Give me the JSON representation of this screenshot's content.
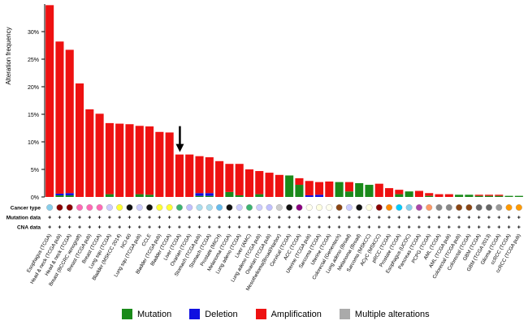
{
  "chart_data": {
    "type": "bar",
    "ylabel": "Alteration frequency",
    "ylim": [
      0,
      35
    ],
    "yticks": [
      0,
      5,
      10,
      15,
      20,
      25,
      30
    ],
    "ytick_labels": [
      "0%",
      "5%",
      "10%",
      "15%",
      "20%",
      "25%",
      "30%"
    ],
    "row_labels": {
      "cancer_type": "Cancer type",
      "mutation_data": "Mutation data",
      "cna_data": "CNA data"
    },
    "categories": [
      "Esophagus (TCGA)",
      "Head & neck (TCGA pub)",
      "Head & neck (TCGA)",
      "Breast (BCCRC xenograft)",
      "Breast (TCGA pub)",
      "Breast (TCGA)",
      "Lung squ (TCGA)",
      "Bladder (MSKCC 2014)",
      "NCI-60",
      "Lung squ (TCGA pub)",
      "CCLE",
      "Bladder (TCGA pub)",
      "Bladder (TCGA)",
      "Liver (TCGA)",
      "Ovarian (TCGA)",
      "Stomach (TCGA pub)",
      "Stomach (TCGA)",
      "Prostate (MICH)",
      "Melanoma (TCGA)",
      "Lung adeno (TCGA)",
      "Liver (AMC)",
      "Lung adeno (TCGA pub)",
      "Ovarian (TCGA pub)",
      "Mesothelioma(Broad/Harbor)",
      "Cervical (TCGA)",
      "ACC (TCGA)",
      "Uterine (TCGA pub)",
      "Sarcoma (TCGA)",
      "Uterine (TCGA)",
      "Colorectal (Genentech)",
      "Lung adeno (Broad)",
      "Melanoma (Broad)",
      "Sarcoma (MSKCC)",
      "ACyC (MSKCC)",
      "pRCC (TCGA)",
      "Prostate (TCGA)",
      "Esophagus (UCOC)",
      "Pancreas (TCGA)",
      "PCPG (TCGA)",
      "AML (TCGA)",
      "AML (TCGA pub)",
      "Colorectal (TCGA pub)",
      "Colorectal (TCGA)",
      "GBM (TCGA)",
      "GBM (TCGA 2013)",
      "Glioma (TCGA)",
      "ccRCC (TCGA)",
      "ccRCC (TCGA pub)"
    ],
    "series": [
      {
        "name": "Mutation",
        "color": "#1a8a1a",
        "values": [
          0,
          0.3,
          0.3,
          0,
          0,
          0,
          0.5,
          0,
          0,
          0.5,
          0.4,
          0,
          0,
          0,
          0,
          0.2,
          0.2,
          0,
          0.9,
          0.3,
          0,
          0.5,
          0,
          0,
          3.9,
          2.2,
          0,
          0,
          0,
          2.7,
          1.0,
          2.5,
          2.2,
          0,
          0,
          0.5,
          1.0,
          0,
          0.2,
          0,
          0,
          0.4,
          0.4,
          0.2,
          0.2,
          0.2,
          0.2,
          0.2
        ]
      },
      {
        "name": "Deletion",
        "color": "#1010e0",
        "values": [
          0,
          0.3,
          0.4,
          0,
          0,
          0,
          0,
          0,
          0,
          0,
          0,
          0,
          0,
          0,
          0,
          0.5,
          0.5,
          0,
          0,
          0,
          0,
          0,
          0,
          0,
          0,
          0,
          0.3,
          0.4,
          0,
          0,
          0,
          0,
          0,
          0,
          0,
          0,
          0,
          0,
          0,
          0,
          0,
          0,
          0,
          0,
          0,
          0,
          0,
          0
        ]
      },
      {
        "name": "Amplification",
        "color": "#ee1111",
        "values": [
          34.8,
          27.6,
          26.0,
          20.6,
          15.9,
          15.1,
          12.9,
          13.3,
          13.2,
          12.4,
          12.4,
          11.8,
          11.7,
          7.7,
          7.7,
          6.7,
          6.5,
          6.5,
          5.1,
          5.7,
          5.0,
          4.2,
          4.4,
          4.0,
          0,
          1.2,
          2.6,
          2.3,
          2.8,
          0,
          1.7,
          0,
          0,
          2.4,
          1.6,
          0.8,
          0,
          1.1,
          0.5,
          0.5,
          0.5,
          0,
          0,
          0.2,
          0.2,
          0.2,
          0,
          0
        ]
      },
      {
        "name": "Multiple alterations",
        "color": "#aaaaaa",
        "values": [
          0,
          0,
          0,
          0,
          0,
          0,
          0,
          0,
          0,
          0,
          0,
          0,
          0,
          0,
          0,
          0,
          0,
          0,
          0,
          0,
          0,
          0,
          0,
          0,
          0,
          0,
          0,
          0,
          0,
          0,
          0,
          0,
          0,
          0,
          0,
          0,
          0,
          0,
          0,
          0,
          0,
          0,
          0,
          0,
          0,
          0,
          0,
          0
        ]
      }
    ],
    "cancer_type_colors": [
      "#87ceeb",
      "#8b0000",
      "#8b0000",
      "#ff69b4",
      "#ff69b4",
      "#ff69b4",
      "#ccccff",
      "#ffff33",
      "#111111",
      "#ccccff",
      "#111111",
      "#ffff33",
      "#ffff33",
      "#3cb371",
      "#c0c0ff",
      "#aaddee",
      "#aaddee",
      "#66bbee",
      "#111111",
      "#ccccff",
      "#3cb371",
      "#ccccff",
      "#c0c0ff",
      "#cccccc",
      "#111111",
      "#8b0080",
      "#ffffee",
      "#ffffe0",
      "#ffffee",
      "#8b4513",
      "#ccccff",
      "#111111",
      "#ffffe0",
      "#8b0000",
      "#ff8800",
      "#00ccff",
      "#87ceeb",
      "#aa44aa",
      "#ff9966",
      "#888888",
      "#888888",
      "#8b4513",
      "#8b4513",
      "#666666",
      "#666666",
      "#999999",
      "#ff9900",
      "#ff9900"
    ],
    "mutation_data_markers": "+",
    "cna_data_markers": "+",
    "annotations": [
      {
        "type": "arrow",
        "category": "Liver (TCGA)",
        "direction": "down"
      }
    ],
    "legend": {
      "placement": "bottom-center",
      "items": [
        {
          "label": "Mutation",
          "color": "#1a8a1a"
        },
        {
          "label": "Deletion",
          "color": "#1010e0"
        },
        {
          "label": "Amplification",
          "color": "#ee1111"
        },
        {
          "label": "Multiple alterations",
          "color": "#aaaaaa"
        }
      ]
    },
    "grid": false
  }
}
